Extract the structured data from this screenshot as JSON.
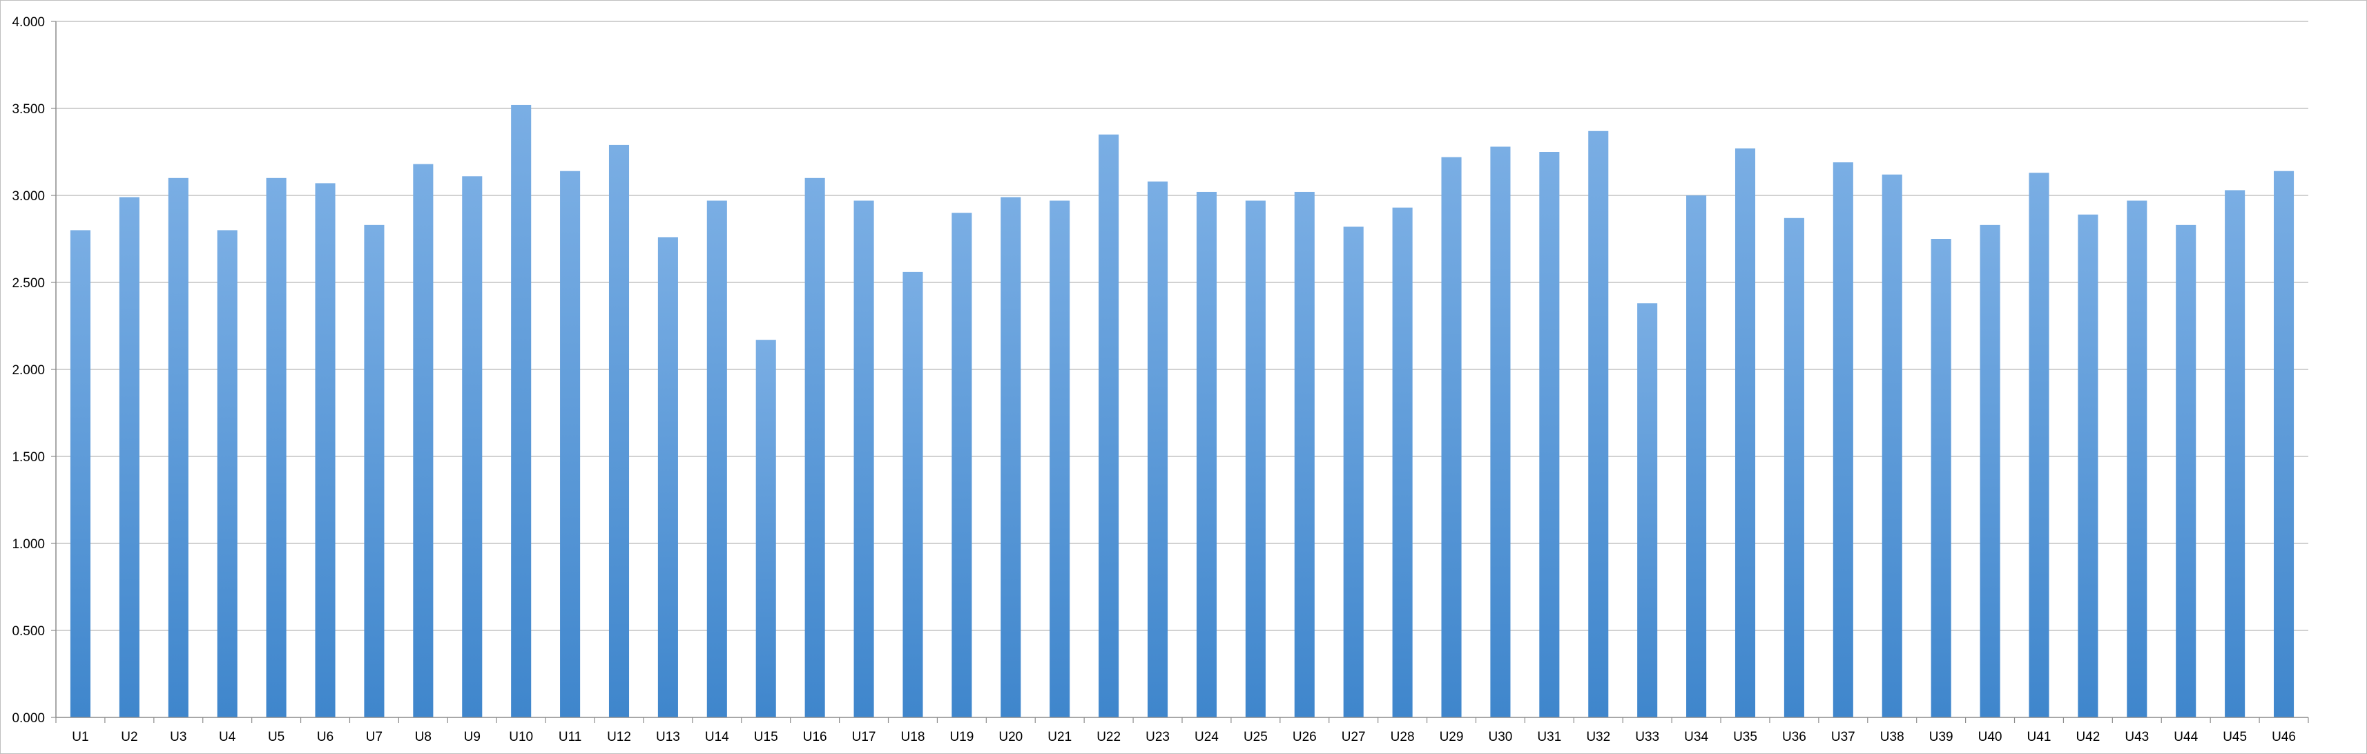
{
  "chart_data": {
    "type": "bar",
    "title": "",
    "xlabel": "",
    "ylabel": "",
    "ylim": [
      0,
      4
    ],
    "yticks": [
      "0.000",
      "0.500",
      "1.000",
      "1.500",
      "2.000",
      "2.500",
      "3.000",
      "3.500",
      "4.000"
    ],
    "grid": true,
    "legend": "none",
    "categories": [
      "U1",
      "U2",
      "U3",
      "U4",
      "U5",
      "U6",
      "U7",
      "U8",
      "U9",
      "U10",
      "U11",
      "U12",
      "U13",
      "U14",
      "U15",
      "U16",
      "U17",
      "U18",
      "U19",
      "U20",
      "U21",
      "U22",
      "U23",
      "U24",
      "U25",
      "U26",
      "U27",
      "U28",
      "U29",
      "U30",
      "U31",
      "U32",
      "U33",
      "U34",
      "U35",
      "U36",
      "U37",
      "U38",
      "U39",
      "U40",
      "U41",
      "U42",
      "U43",
      "U44",
      "U45",
      "U46"
    ],
    "values": [
      2.8,
      2.99,
      3.1,
      2.8,
      3.1,
      3.07,
      2.83,
      3.18,
      3.11,
      3.52,
      3.14,
      3.29,
      2.76,
      2.97,
      2.17,
      3.1,
      2.97,
      2.56,
      2.9,
      2.99,
      2.97,
      3.35,
      3.08,
      3.02,
      2.97,
      3.02,
      2.82,
      2.93,
      3.22,
      3.28,
      3.25,
      3.37,
      2.38,
      3.0,
      3.27,
      2.87,
      3.19,
      3.12,
      2.75,
      2.83,
      3.13,
      2.89,
      2.97,
      2.83,
      3.03,
      3.14
    ],
    "colors": {
      "bar_top": "#7aaee4",
      "bar_bottom": "#3f86cc",
      "grid": "#a6a6a6",
      "axis": "#8c8c8c"
    }
  }
}
